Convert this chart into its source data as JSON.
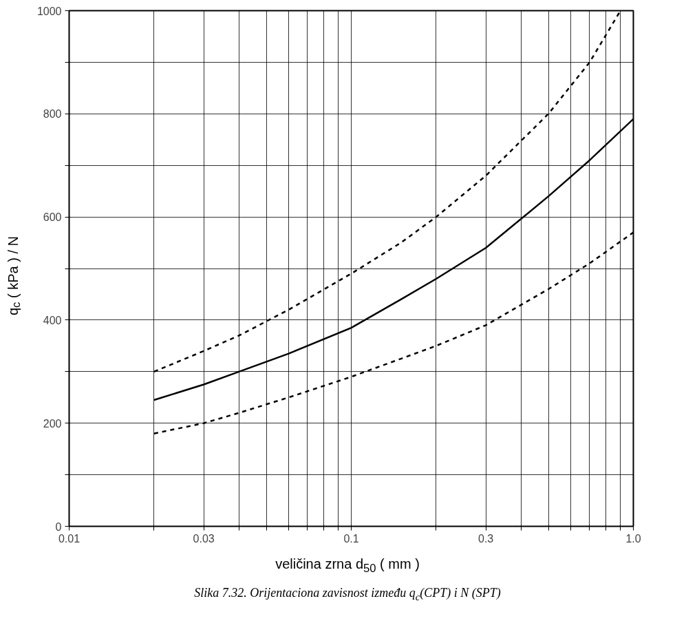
{
  "chart_data": {
    "type": "line",
    "xlabel": "veličina zrna d$_{50}$ ( mm )",
    "ylabel": "q$_{c}$ ( kPa ) / N",
    "log": "x",
    "grid": true,
    "xlim": [
      0.01,
      1
    ],
    "ylim": [
      0,
      1000
    ],
    "xticks": [
      0.01,
      {
        "value": 0.02,
        "label": null
      },
      0.03,
      {
        "value": 0.04,
        "label": null
      },
      {
        "value": 0.05,
        "label": null
      },
      {
        "value": 0.06,
        "label": null
      },
      {
        "value": 0.07,
        "label": null
      },
      {
        "value": 0.08,
        "label": null
      },
      {
        "value": 0.09,
        "label": null
      },
      0.1,
      {
        "value": 0.2,
        "label": null
      },
      0.3,
      {
        "value": 0.4,
        "label": null
      },
      {
        "value": 0.5,
        "label": null
      },
      {
        "value": 0.6,
        "label": null
      },
      {
        "value": 0.7,
        "label": null
      },
      {
        "value": 0.8,
        "label": null
      },
      {
        "value": 0.9,
        "label": null
      },
      {
        "value": 1,
        "label": "1.0"
      }
    ],
    "yticks": [
      0,
      {
        "value": 100,
        "label": null
      },
      200,
      {
        "value": 300,
        "label": null
      },
      400,
      {
        "value": 500,
        "label": null
      },
      600,
      {
        "value": 700,
        "label": null
      },
      800,
      {
        "value": 900,
        "label": null
      },
      1000
    ],
    "series": [
      {
        "color": "#000000",
        "line_style": "dashed",
        "x": [
          0.02,
          0.03,
          0.04,
          0.06,
          0.1,
          0.15,
          0.2,
          0.3,
          0.5,
          0.7,
          0.9
        ],
        "values": [
          300,
          340,
          370,
          420,
          490,
          550,
          600,
          680,
          800,
          900,
          1000
        ]
      },
      {
        "color": "#000000",
        "line_style": "solid",
        "x": [
          0.02,
          0.03,
          0.04,
          0.06,
          0.1,
          0.15,
          0.2,
          0.3,
          0.5,
          0.7,
          1
        ],
        "values": [
          245,
          275,
          300,
          335,
          385,
          440,
          480,
          540,
          640,
          710,
          790
        ]
      },
      {
        "color": "#000000",
        "line_style": "dashed",
        "x": [
          0.02,
          0.03,
          0.04,
          0.06,
          0.1,
          0.15,
          0.2,
          0.3,
          0.5,
          0.7,
          1
        ],
        "values": [
          180,
          200,
          220,
          250,
          290,
          325,
          350,
          390,
          460,
          510,
          570
        ]
      }
    ],
    "annotations": [
      "Slika 7.32. Orijentaciona zavisnost između q$_{c}$(CPT) i N (SPT)"
    ]
  }
}
